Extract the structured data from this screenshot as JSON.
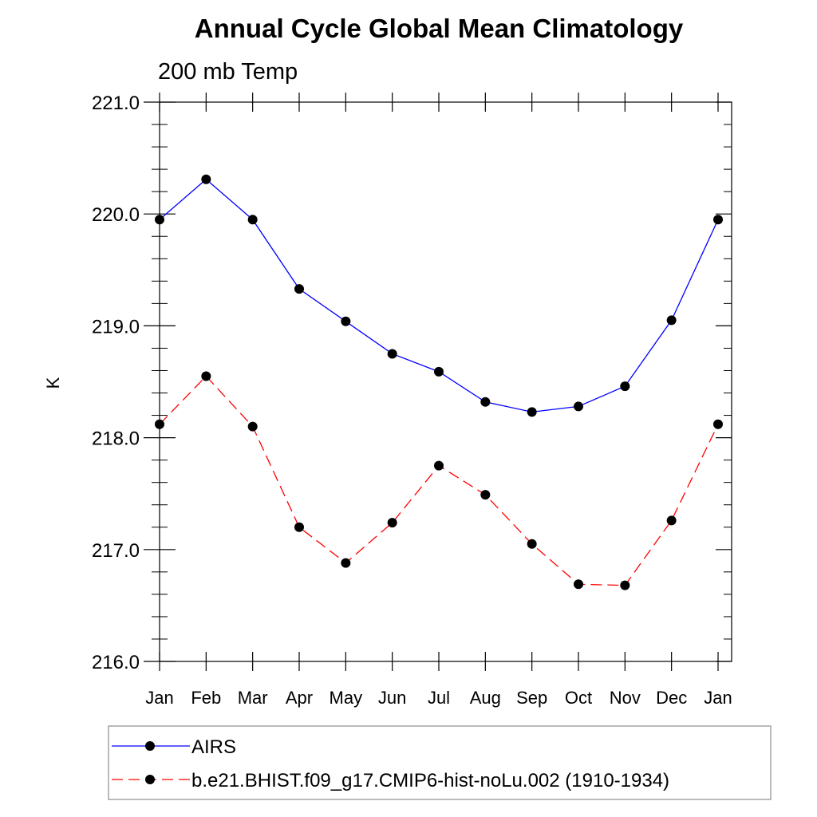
{
  "chart_data": {
    "type": "line",
    "title": "Annual Cycle Global Mean Climatology",
    "subtitle": "200 mb Temp",
    "xlabel": "",
    "ylabel": "K",
    "ylim": [
      216.0,
      221.0
    ],
    "yticks": [
      "216.0",
      "217.0",
      "218.0",
      "219.0",
      "220.0",
      "221.0"
    ],
    "categories": [
      "Jan",
      "Feb",
      "Mar",
      "Apr",
      "May",
      "Jun",
      "Jul",
      "Aug",
      "Sep",
      "Oct",
      "Nov",
      "Dec",
      "Jan"
    ],
    "series": [
      {
        "name": "AIRS",
        "color": "#0000ff",
        "dashed": false,
        "values": [
          219.95,
          220.31,
          219.95,
          219.33,
          219.04,
          218.75,
          218.59,
          218.32,
          218.23,
          218.28,
          218.46,
          219.05,
          219.95
        ]
      },
      {
        "name": "b.e21.BHIST.f09_g17.CMIP6-hist-noLu.002 (1910-1934)",
        "color": "#ff0000",
        "dashed": true,
        "values": [
          218.12,
          218.55,
          218.1,
          217.2,
          216.88,
          217.24,
          217.75,
          217.49,
          217.05,
          216.69,
          216.68,
          217.26,
          218.12
        ]
      }
    ],
    "grid": false,
    "legend": "bottom"
  }
}
